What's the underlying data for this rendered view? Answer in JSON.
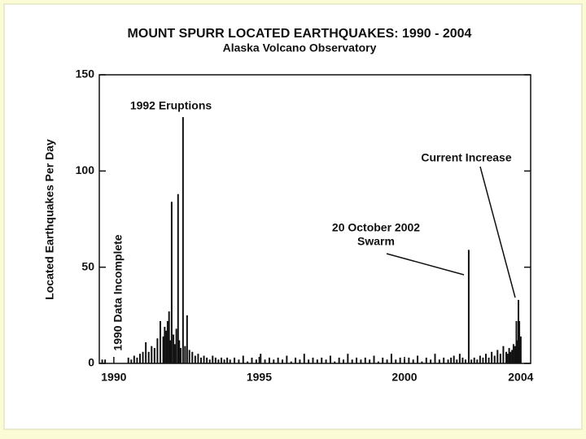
{
  "chart_data": {
    "type": "bar",
    "title": "MOUNT SPURR LOCATED EARTHQUAKES: 1990 - 2004",
    "subtitle": "Alaska Volcano Observatory",
    "y_label": "Located Earthquakes Per Day",
    "annotations": [
      "1992 Eruptions",
      "Current Increase",
      "20 October 2002",
      "Swarm",
      "1990 Data Incomplete"
    ],
    "color": "#111111",
    "xlim": [
      1989.5,
      2004.34
    ],
    "xticks": [
      1990,
      1995,
      2000,
      2004
    ],
    "ylim": [
      0,
      150
    ],
    "yticks": [
      0,
      50,
      100,
      150
    ],
    "x": [
      1989.6,
      1989.7,
      1990.5,
      1990.6,
      1990.7,
      1990.8,
      1990.9,
      1991.0,
      1991.1,
      1991.2,
      1991.3,
      1991.4,
      1991.5,
      1991.6,
      1991.7,
      1991.75,
      1991.8,
      1991.85,
      1991.9,
      1991.95,
      1991.99,
      1992.05,
      1992.1,
      1992.15,
      1992.21,
      1992.25,
      1992.3,
      1992.38,
      1992.45,
      1992.52,
      1992.6,
      1992.7,
      1992.8,
      1992.9,
      1993.0,
      1993.1,
      1993.2,
      1993.3,
      1993.4,
      1993.5,
      1993.6,
      1993.7,
      1993.8,
      1993.9,
      1994.0,
      1994.15,
      1994.3,
      1994.45,
      1994.6,
      1994.75,
      1994.9,
      1995.05,
      1995.2,
      1995.35,
      1995.5,
      1995.65,
      1995.8,
      1995.95,
      1996.1,
      1996.25,
      1996.4,
      1996.55,
      1996.7,
      1996.85,
      1997.0,
      1997.15,
      1997.3,
      1997.45,
      1997.6,
      1997.75,
      1997.9,
      1998.05,
      1998.2,
      1998.35,
      1998.5,
      1998.65,
      1998.8,
      1998.95,
      1999.1,
      1999.25,
      1999.4,
      1999.55,
      1999.7,
      1999.85,
      2000.0,
      2000.15,
      2000.3,
      2000.45,
      2000.6,
      2000.75,
      2000.9,
      2001.05,
      2001.2,
      2001.35,
      2001.5,
      2001.6,
      2001.7,
      2001.8,
      2001.9,
      2002.0,
      2002.1,
      2002.21,
      2002.3,
      2002.4,
      2002.5,
      2002.6,
      2002.7,
      2002.8,
      2002.9,
      2003.0,
      2003.1,
      2003.2,
      2003.3,
      2003.4,
      2003.5,
      2003.55,
      2003.6,
      2003.65,
      2003.7,
      2003.75,
      2003.8,
      2003.85,
      2003.88,
      2003.92,
      2003.95,
      2004.0
    ],
    "values": [
      2,
      2,
      3,
      2,
      4,
      3,
      5,
      6,
      11,
      6,
      9,
      8,
      13,
      22,
      14,
      19,
      17,
      22,
      27,
      12,
      84,
      15,
      10,
      18,
      88,
      12,
      8,
      128,
      9,
      25,
      7,
      6,
      4,
      5,
      3,
      4,
      3,
      2,
      4,
      3,
      2,
      3,
      2,
      3,
      2,
      3,
      2,
      4,
      1,
      3,
      2,
      5,
      2,
      3,
      2,
      3,
      2,
      4,
      1,
      3,
      2,
      5,
      2,
      3,
      2,
      3,
      2,
      4,
      1,
      3,
      2,
      5,
      2,
      3,
      2,
      3,
      2,
      4,
      1,
      3,
      2,
      5,
      2,
      3,
      2,
      3,
      2,
      4,
      1,
      3,
      2,
      5,
      2,
      3,
      2,
      3,
      4,
      2,
      5,
      3,
      2,
      59,
      2,
      3,
      2,
      4,
      3,
      5,
      3,
      6,
      4,
      7,
      5,
      9,
      6,
      5,
      8,
      6,
      7,
      10,
      9,
      22,
      12,
      33,
      22,
      14
    ]
  }
}
